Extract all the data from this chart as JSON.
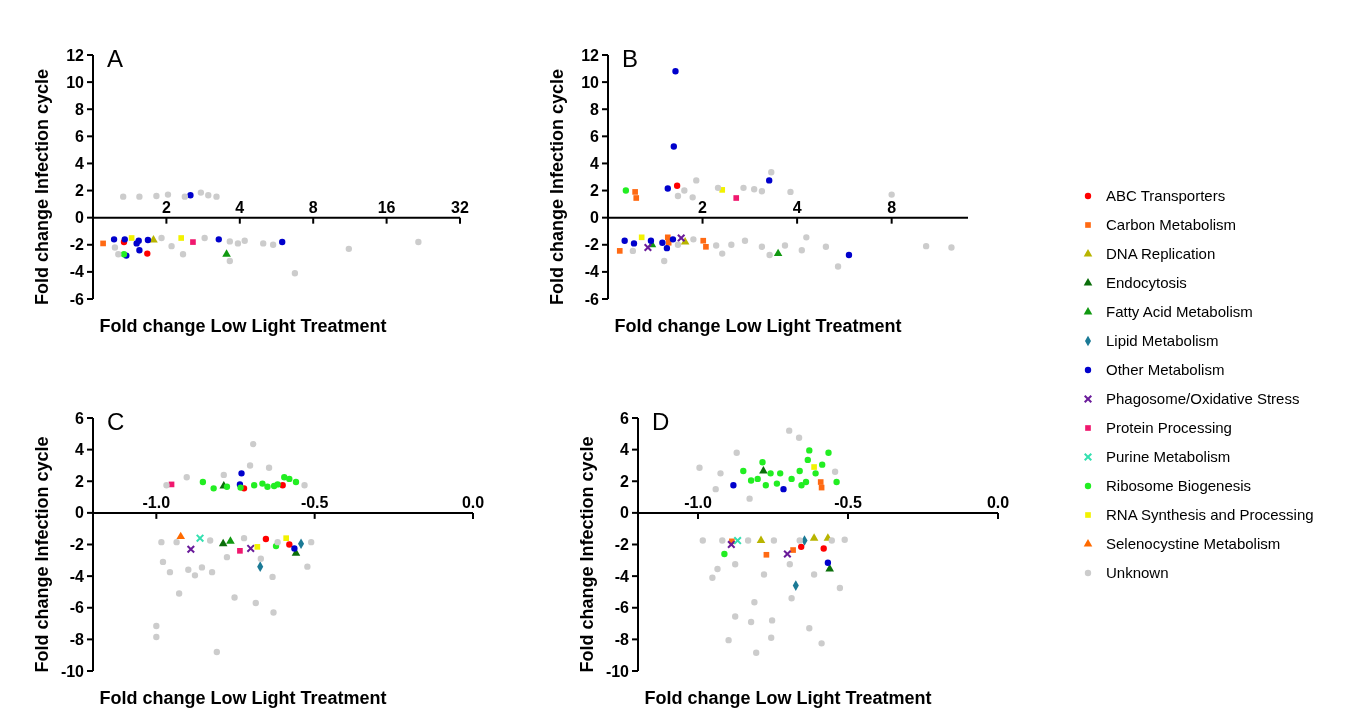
{
  "chart_data": [
    {
      "type": "scatter",
      "title": "A",
      "xlabel": "Fold change Low Light Treatment",
      "ylabel": "Fold change Infection cycle",
      "log": "x",
      "xlim": [
        1,
        32
      ],
      "xticks": [
        2,
        4,
        8,
        16,
        32
      ],
      "ylim": [
        -6,
        12
      ],
      "yticks": [
        -6,
        -4,
        -2,
        0,
        2,
        4,
        6,
        8,
        10,
        12
      ],
      "grid": false,
      "legend": false,
      "series": [
        {
          "color": "#ff0000",
          "marker": "circle",
          "x": [
            1.34,
            1.67
          ],
          "values": [
            -1.8,
            -2.65
          ]
        },
        {
          "color": "#ff6a13",
          "marker": "square",
          "x": [
            1.1
          ],
          "values": [
            -1.9
          ]
        },
        {
          "color": "#b8b400",
          "marker": "triangle",
          "x": [
            1.77
          ],
          "values": [
            -1.65
          ]
        },
        {
          "color": "#119911",
          "marker": "triangle",
          "x": [
            3.53
          ],
          "values": [
            -2.7
          ]
        },
        {
          "color": "#0000cc",
          "marker": "circle",
          "x": [
            1.22,
            1.35,
            1.37,
            1.51,
            1.54,
            1.55,
            1.68,
            2.51,
            3.28,
            5.97
          ],
          "values": [
            -1.6,
            -1.6,
            -2.8,
            -1.9,
            -1.7,
            -2.4,
            -1.65,
            1.65,
            -1.6,
            -1.8
          ]
        },
        {
          "color": "#f0186e",
          "marker": "square",
          "x": [
            2.57
          ],
          "values": [
            -1.8
          ]
        },
        {
          "color": "#22ee22",
          "marker": "circle",
          "x": [
            1.34
          ],
          "values": [
            -2.7
          ]
        },
        {
          "color": "#f2f200",
          "marker": "square",
          "x": [
            1.44,
            2.3
          ],
          "values": [
            -1.5,
            -1.5
          ]
        },
        {
          "color": "#cccccc",
          "marker": "circle",
          "x": [
            1.33,
            1.55,
            1.82,
            2.03,
            2.38,
            2.77,
            2.97,
            3.21,
            1.23,
            1.91,
            2.1,
            2.34,
            2.87,
            3.64,
            3.93,
            4.19,
            4.99,
            5.48,
            3.64,
            6.73,
            11.2,
            21.6,
            1.27
          ],
          "values": [
            1.55,
            1.55,
            1.6,
            1.7,
            1.55,
            1.85,
            1.65,
            1.55,
            -2.2,
            -1.5,
            -2.1,
            -2.7,
            -1.5,
            -1.75,
            -1.9,
            -1.7,
            -1.9,
            -2.0,
            -3.2,
            -4.1,
            -2.3,
            -1.8,
            -2.7
          ]
        }
      ]
    },
    {
      "type": "scatter",
      "title": "B",
      "xlabel": "Fold change Low Light Treatment",
      "ylabel": "Fold change Infection cycle",
      "log": "x",
      "xlim": [
        1,
        14
      ],
      "xticks": [
        2,
        4,
        8
      ],
      "ylim": [
        -6,
        12
      ],
      "yticks": [
        -6,
        -4,
        -2,
        0,
        2,
        4,
        6,
        8,
        10,
        12
      ],
      "grid": false,
      "legend": false,
      "series": [
        {
          "color": "#ff0000",
          "marker": "circle",
          "x": [
            1.66
          ],
          "values": [
            2.35
          ]
        },
        {
          "color": "#ff6a13",
          "marker": "square",
          "x": [
            1.22,
            1.23,
            1.09,
            1.55,
            1.56,
            2.01,
            2.05
          ],
          "values": [
            1.9,
            1.45,
            -2.45,
            -1.45,
            -1.85,
            -1.7,
            -2.15
          ]
        },
        {
          "color": "#b8b400",
          "marker": "triangle",
          "x": [
            1.76
          ],
          "values": [
            -1.8
          ]
        },
        {
          "color": "#119911",
          "marker": "triangle",
          "x": [
            1.38,
            3.48
          ],
          "values": [
            -2.0,
            -2.65
          ]
        },
        {
          "color": "#0000cc",
          "marker": "circle",
          "x": [
            1.64,
            1.62,
            1.55,
            3.26,
            1.13,
            1.21,
            1.37,
            1.49,
            1.54,
            1.61,
            5.85
          ],
          "values": [
            10.8,
            5.25,
            2.15,
            2.75,
            -1.7,
            -1.9,
            -1.7,
            -1.85,
            -2.25,
            -1.6,
            -2.75
          ]
        },
        {
          "color": "#6a1b9a",
          "marker": "cross",
          "x": [
            1.34,
            1.71
          ],
          "values": [
            -2.2,
            -1.5
          ]
        },
        {
          "color": "#f0186e",
          "marker": "square",
          "x": [
            2.56
          ],
          "values": [
            1.45
          ]
        },
        {
          "color": "#22ee22",
          "marker": "circle",
          "x": [
            1.14
          ],
          "values": [
            2.0
          ]
        },
        {
          "color": "#f2f200",
          "marker": "square",
          "x": [
            1.28,
            2.31
          ],
          "values": [
            -1.45,
            2.05
          ]
        },
        {
          "color": "#cccccc",
          "marker": "circle",
          "x": [
            1.91,
            1.75,
            1.67,
            1.86,
            2.24,
            2.7,
            2.92,
            3.09,
            3.31,
            3.81,
            1.2,
            1.51,
            1.67,
            1.87,
            2.21,
            2.31,
            2.47,
            2.73,
            3.09,
            3.27,
            3.66,
            4.14,
            4.28,
            4.94,
            5.4,
            8.0,
            10.3,
            12.4
          ],
          "values": [
            2.75,
            2.0,
            1.6,
            1.5,
            2.2,
            2.2,
            2.1,
            1.95,
            3.35,
            1.9,
            -2.45,
            -3.2,
            -2.0,
            -1.6,
            -2.05,
            -2.65,
            -2.0,
            -1.7,
            -2.15,
            -2.75,
            -2.05,
            -2.4,
            -1.45,
            -2.15,
            -3.6,
            1.7,
            -2.1,
            -2.2
          ]
        }
      ]
    },
    {
      "type": "scatter",
      "title": "C",
      "xlabel": "Fold change Low Light Treatment",
      "ylabel": "Fold change Infection cycle",
      "xlim": [
        -1.2,
        0
      ],
      "xticks": [
        {
          "value": -1,
          "label": "-1.0"
        },
        {
          "value": -0.5,
          "label": "-0.5"
        },
        {
          "value": 0,
          "label": "0.0"
        }
      ],
      "ylim": [
        -10,
        6
      ],
      "yticks": [
        -10,
        -8,
        -6,
        -4,
        -2,
        0,
        2,
        4,
        6
      ],
      "grid": false,
      "legend": false,
      "series": [
        {
          "color": "#ff0000",
          "marker": "circle",
          "x": [
            -0.723,
            -0.601,
            -0.654,
            -0.58
          ],
          "values": [
            1.55,
            1.75,
            -1.65,
            -2.0
          ]
        },
        {
          "color": "#0a6e0a",
          "marker": "triangle",
          "x": [
            -0.787,
            -0.789,
            -0.559
          ],
          "values": [
            1.7,
            -1.95,
            -2.55
          ]
        },
        {
          "color": "#119911",
          "marker": "triangle",
          "x": [
            -0.766
          ],
          "values": [
            -1.8
          ]
        },
        {
          "color": "#1b7a96",
          "marker": "diamond",
          "x": [
            -0.672,
            -0.543
          ],
          "values": [
            -3.4,
            -1.95
          ]
        },
        {
          "color": "#0000cc",
          "marker": "circle",
          "x": [
            -0.731,
            -0.736,
            -0.564
          ],
          "values": [
            2.5,
            1.8,
            -2.25
          ]
        },
        {
          "color": "#6a1b9a",
          "marker": "cross",
          "x": [
            -0.891,
            -0.702
          ],
          "values": [
            -2.3,
            -2.25
          ]
        },
        {
          "color": "#f0186e",
          "marker": "square",
          "x": [
            -0.952,
            -0.736
          ],
          "values": [
            1.8,
            -2.4
          ]
        },
        {
          "color": "#33e0b0",
          "marker": "cross",
          "x": [
            -0.862
          ],
          "values": [
            -1.6
          ]
        },
        {
          "color": "#22ee22",
          "marker": "circle",
          "x": [
            -0.853,
            -0.819,
            -0.777,
            -0.734,
            -0.691,
            -0.665,
            -0.628,
            -0.596,
            -0.58,
            -0.559,
            -0.649,
            -0.617,
            -0.622
          ],
          "values": [
            1.95,
            1.55,
            1.65,
            1.6,
            1.75,
            1.85,
            1.7,
            2.25,
            2.15,
            1.95,
            1.65,
            1.8,
            -2.1
          ]
        },
        {
          "color": "#f2f200",
          "marker": "square",
          "x": [
            -0.681,
            -0.59
          ],
          "values": [
            -2.15,
            -1.6
          ]
        },
        {
          "color": "#ff6a00",
          "marker": "triangle",
          "x": [
            -0.923
          ],
          "values": [
            -1.5
          ]
        },
        {
          "color": "#cccccc",
          "marker": "circle",
          "x": [
            -0.694,
            -0.704,
            -0.644,
            -0.968,
            -0.904,
            -0.787,
            -0.532,
            -0.984,
            -0.936,
            -0.83,
            -0.723,
            -0.617,
            -0.511,
            -0.979,
            -0.957,
            -0.899,
            -0.878,
            -0.856,
            -0.824,
            -0.928,
            -0.753,
            -0.686,
            -0.63,
            -0.633,
            -1.0,
            -1.0,
            -0.809,
            -0.523,
            -0.67,
            -0.777
          ],
          "values": [
            4.35,
            3.0,
            2.85,
            1.75,
            2.25,
            2.4,
            1.75,
            -1.85,
            -1.85,
            -1.75,
            -1.6,
            -1.85,
            -1.85,
            -3.1,
            -3.75,
            -3.6,
            -3.95,
            -3.45,
            -3.75,
            -5.1,
            -5.35,
            -5.7,
            -6.3,
            -4.05,
            -7.15,
            -7.85,
            -8.8,
            -3.4,
            -2.9,
            -2.8
          ]
        }
      ]
    },
    {
      "type": "scatter",
      "title": "D",
      "xlabel": "Fold change Low Light Treatment",
      "ylabel": "Fold change Infection cycle",
      "xlim": [
        -1.2,
        0
      ],
      "xticks": [
        {
          "value": -1,
          "label": "-1.0"
        },
        {
          "value": -0.5,
          "label": "-0.5"
        },
        {
          "value": 0,
          "label": "0.0"
        }
      ],
      "ylim": [
        -10,
        6
      ],
      "yticks": [
        -10,
        -8,
        -6,
        -4,
        -2,
        0,
        2,
        4,
        6
      ],
      "grid": false,
      "legend": "right",
      "series": [
        {
          "name": "ABC Transporters",
          "color": "#ff0000",
          "marker": "circle",
          "x": [
            -0.656,
            -0.581
          ],
          "values": [
            -2.15,
            -2.25
          ]
        },
        {
          "name": "Carbon Metabolism",
          "color": "#ff6a13",
          "marker": "square",
          "x": [
            -0.591,
            -0.588,
            -0.887,
            -0.772,
            -0.683
          ],
          "values": [
            1.95,
            1.6,
            -1.8,
            -2.65,
            -2.35
          ]
        },
        {
          "name": "DNA Replication",
          "color": "#b8b400",
          "marker": "triangle",
          "x": [
            -0.79,
            -0.613,
            -0.567
          ],
          "values": [
            -1.75,
            -1.6,
            -1.6
          ]
        },
        {
          "name": "Endocytosis",
          "color": "#0a6e0a",
          "marker": "triangle",
          "x": [
            -0.782,
            -0.561
          ],
          "values": [
            2.65,
            -3.55
          ]
        },
        {
          "name": "Fatty Acid Metabolism",
          "color": "#119911",
          "marker": "triangle"
        },
        {
          "name": "Lipid Metabolism",
          "color": "#1b7a96",
          "marker": "diamond",
          "x": [
            -0.645,
            -0.674
          ],
          "values": [
            -1.75,
            -4.6
          ]
        },
        {
          "name": "Other Metabolism",
          "color": "#0000cc",
          "marker": "circle",
          "x": [
            -0.882,
            -0.715,
            -0.567
          ],
          "values": [
            1.75,
            1.5,
            -3.15
          ]
        },
        {
          "name": "Phagosome/Oxidative Stress",
          "color": "#6a1b9a",
          "marker": "cross",
          "x": [
            -0.889,
            -0.702
          ],
          "values": [
            -2.0,
            -2.6
          ]
        },
        {
          "name": "Protein Processing",
          "color": "#f0186e",
          "marker": "square"
        },
        {
          "name": "Purine Metabolism",
          "color": "#33e0b0",
          "marker": "cross",
          "x": [
            -0.868
          ],
          "values": [
            -1.75
          ]
        },
        {
          "name": "Ribosome Biogenesis",
          "color": "#22ee22",
          "marker": "circle",
          "x": [
            -0.849,
            -0.785,
            -0.823,
            -0.774,
            -0.758,
            -0.737,
            -0.726,
            -0.688,
            -0.661,
            -0.655,
            -0.629,
            -0.634,
            -0.608,
            -0.586,
            -0.565,
            -0.538,
            -0.64,
            -0.801,
            -0.912
          ],
          "values": [
            2.65,
            3.2,
            2.05,
            1.75,
            2.5,
            1.85,
            2.5,
            2.15,
            2.65,
            1.75,
            3.95,
            3.35,
            2.5,
            3.05,
            3.8,
            1.95,
            1.95,
            2.15,
            -2.6
          ]
        },
        {
          "name": "RNA Synthesis and Processing",
          "color": "#f2f200",
          "marker": "square",
          "x": [
            -0.613
          ],
          "values": [
            2.9
          ]
        },
        {
          "name": "Selenocystine Metabolism",
          "color": "#ff6a00",
          "marker": "triangle"
        },
        {
          "name": "Unknown",
          "color": "#cccccc",
          "marker": "circle",
          "x": [
            -0.696,
            -0.663,
            -0.871,
            -0.995,
            -0.925,
            -0.828,
            -0.543,
            -0.941,
            -0.984,
            -0.919,
            -0.833,
            -0.747,
            -0.661,
            -0.554,
            -0.511,
            -0.952,
            -0.935,
            -0.876,
            -0.78,
            -0.694,
            -0.613,
            -0.527,
            -0.812,
            -0.876,
            -0.823,
            -0.753,
            -0.688,
            -0.629,
            -0.898,
            -0.756,
            -0.806,
            -0.588
          ],
          "values": [
            5.2,
            4.75,
            3.8,
            2.85,
            2.5,
            0.9,
            2.6,
            1.5,
            -1.75,
            -1.75,
            -1.75,
            -1.75,
            -1.75,
            -1.75,
            -1.7,
            -4.1,
            -3.55,
            -3.25,
            -3.9,
            -3.25,
            -3.9,
            -4.75,
            -5.65,
            -6.55,
            -6.9,
            -6.8,
            -5.4,
            -7.3,
            -8.05,
            -7.9,
            -8.85,
            -8.25
          ]
        }
      ]
    }
  ]
}
